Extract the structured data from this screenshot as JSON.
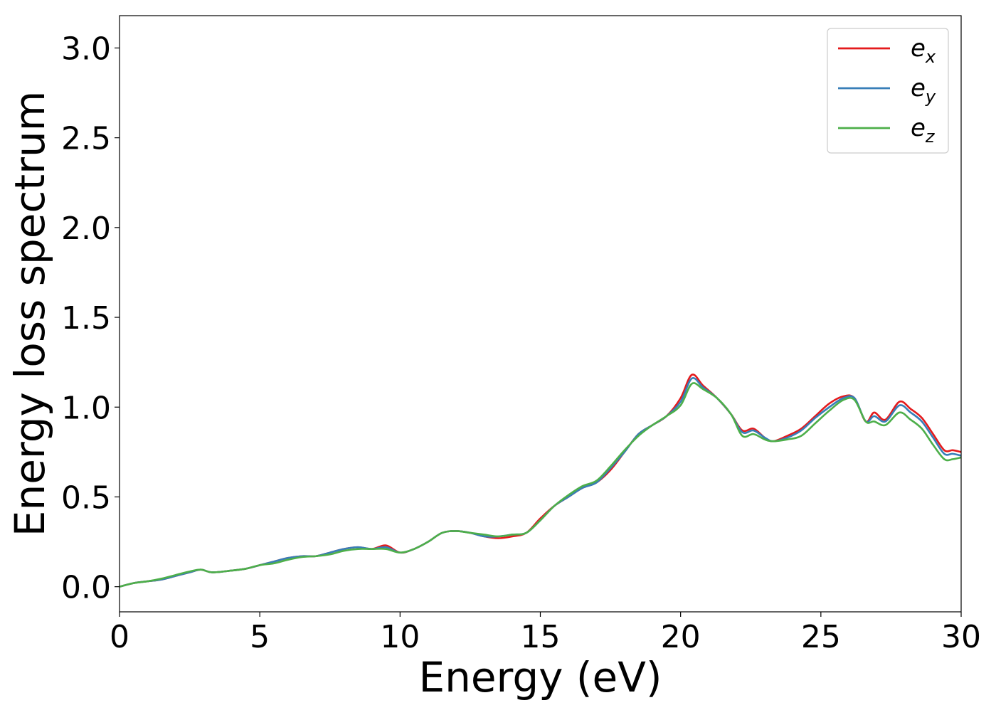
{
  "chart_data": {
    "type": "line",
    "xlabel": "Energy (eV)",
    "ylabel": "Energy loss spectrum",
    "xlim": [
      0,
      30
    ],
    "ylim": [
      -0.14,
      3.18
    ],
    "xticks": [
      0,
      5,
      10,
      15,
      20,
      25,
      30
    ],
    "xtick_labels": [
      "0",
      "5",
      "10",
      "15",
      "20",
      "25",
      "30"
    ],
    "yticks": [
      0.0,
      0.5,
      1.0,
      1.5,
      2.0,
      2.5,
      3.0
    ],
    "ytick_labels": [
      "0.0",
      "0.5",
      "1.0",
      "1.5",
      "2.0",
      "2.5",
      "3.0"
    ],
    "grid": false,
    "legend_position": "top-right",
    "x": [
      0,
      0.5,
      1,
      1.5,
      2,
      2.5,
      2.9,
      3.3,
      4,
      4.5,
      5,
      5.5,
      6,
      6.5,
      7,
      7.5,
      8,
      8.5,
      9,
      9.5,
      10,
      10.5,
      11,
      11.5,
      12,
      12.5,
      13,
      13.5,
      14,
      14.5,
      15,
      15.5,
      16,
      16.5,
      17,
      17.5,
      18,
      18.5,
      19,
      19.5,
      20,
      20.4,
      20.8,
      21.3,
      21.8,
      22.2,
      22.6,
      23,
      23.3,
      23.8,
      24.3,
      24.8,
      25.3,
      25.8,
      26.2,
      26.6,
      26.9,
      27.3,
      27.8,
      28.2,
      28.6,
      29,
      29.4,
      29.7,
      30
    ],
    "series": [
      {
        "name": "e",
        "subscript": "x",
        "color": "#e41a1c",
        "values": [
          0.0,
          0.02,
          0.03,
          0.04,
          0.06,
          0.08,
          0.095,
          0.08,
          0.09,
          0.1,
          0.12,
          0.14,
          0.16,
          0.17,
          0.17,
          0.19,
          0.21,
          0.22,
          0.21,
          0.23,
          0.19,
          0.21,
          0.25,
          0.3,
          0.31,
          0.3,
          0.28,
          0.27,
          0.28,
          0.3,
          0.38,
          0.45,
          0.5,
          0.55,
          0.58,
          0.65,
          0.75,
          0.85,
          0.9,
          0.95,
          1.05,
          1.18,
          1.12,
          1.05,
          0.96,
          0.87,
          0.88,
          0.83,
          0.81,
          0.84,
          0.88,
          0.95,
          1.02,
          1.06,
          1.05,
          0.92,
          0.97,
          0.93,
          1.03,
          0.99,
          0.94,
          0.85,
          0.76,
          0.76,
          0.75
        ]
      },
      {
        "name": "e",
        "subscript": "y",
        "color": "#377eb8",
        "values": [
          0.0,
          0.02,
          0.03,
          0.04,
          0.06,
          0.08,
          0.095,
          0.08,
          0.09,
          0.1,
          0.12,
          0.14,
          0.16,
          0.17,
          0.17,
          0.19,
          0.21,
          0.22,
          0.21,
          0.22,
          0.19,
          0.21,
          0.25,
          0.3,
          0.31,
          0.3,
          0.28,
          0.28,
          0.29,
          0.3,
          0.37,
          0.45,
          0.5,
          0.55,
          0.58,
          0.66,
          0.75,
          0.85,
          0.9,
          0.95,
          1.03,
          1.16,
          1.11,
          1.05,
          0.96,
          0.86,
          0.87,
          0.83,
          0.81,
          0.83,
          0.87,
          0.94,
          1.0,
          1.05,
          1.05,
          0.92,
          0.95,
          0.92,
          1.01,
          0.97,
          0.92,
          0.83,
          0.74,
          0.74,
          0.73
        ]
      },
      {
        "name": "e",
        "subscript": "z",
        "color": "#4daf4a",
        "values": [
          0.0,
          0.02,
          0.03,
          0.045,
          0.065,
          0.085,
          0.095,
          0.08,
          0.09,
          0.1,
          0.12,
          0.13,
          0.15,
          0.165,
          0.17,
          0.18,
          0.2,
          0.21,
          0.21,
          0.21,
          0.19,
          0.21,
          0.25,
          0.3,
          0.31,
          0.3,
          0.29,
          0.28,
          0.29,
          0.3,
          0.37,
          0.45,
          0.51,
          0.56,
          0.59,
          0.67,
          0.76,
          0.84,
          0.9,
          0.95,
          1.01,
          1.13,
          1.1,
          1.05,
          0.96,
          0.84,
          0.85,
          0.82,
          0.81,
          0.82,
          0.84,
          0.91,
          0.98,
          1.04,
          1.04,
          0.92,
          0.92,
          0.9,
          0.97,
          0.93,
          0.88,
          0.79,
          0.71,
          0.71,
          0.72
        ]
      }
    ]
  }
}
